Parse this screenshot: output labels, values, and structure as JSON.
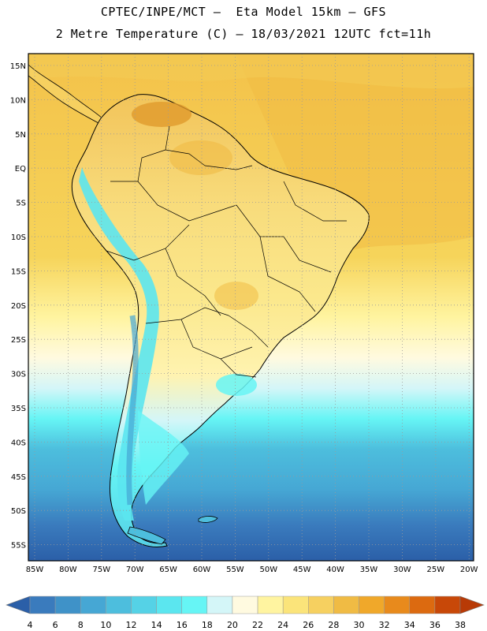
{
  "header": {
    "line1": "CPTEC/INPE/MCT –  Eta Model 15km – GFS",
    "line2": "2 Metre Temperature (C) – 18/03/2021 12UTC fct=11h"
  },
  "map": {
    "lat_labels": [
      "15N",
      "10N",
      "5N",
      "EQ",
      "5S",
      "10S",
      "15S",
      "20S",
      "25S",
      "30S",
      "35S",
      "40S",
      "45S",
      "50S",
      "55S"
    ],
    "lon_labels": [
      "85W",
      "80W",
      "75W",
      "70W",
      "65W",
      "60W",
      "55W",
      "50W",
      "45W",
      "40W",
      "35W",
      "30W",
      "25W",
      "20W"
    ],
    "gridlines": "dotted"
  },
  "colorbar": {
    "labels": [
      "4",
      "6",
      "8",
      "10",
      "12",
      "14",
      "16",
      "18",
      "20",
      "22",
      "24",
      "26",
      "28",
      "30",
      "32",
      "34",
      "36",
      "38"
    ],
    "colors": [
      "#2b5fa8",
      "#3a7bbd",
      "#3f92c8",
      "#46a7d4",
      "#4dbedd",
      "#55d2e6",
      "#5be6ef",
      "#66f5f5",
      "#d4f6f8",
      "#fffae0",
      "#fff4a0",
      "#fbe47a",
      "#f6d060",
      "#f0bb44",
      "#f0a82a",
      "#e88a1c",
      "#dc6a10",
      "#c84808",
      "#b83a06"
    ]
  },
  "colors": {
    "ocean_warm": "#f4c84a",
    "ocean_cool": "#4dbedd",
    "ocean_cold": "#2b5fa8",
    "land_hot": "#e8a030",
    "land_mild": "#fff4a0",
    "andes": "#5be6ef",
    "border": "#000000"
  }
}
